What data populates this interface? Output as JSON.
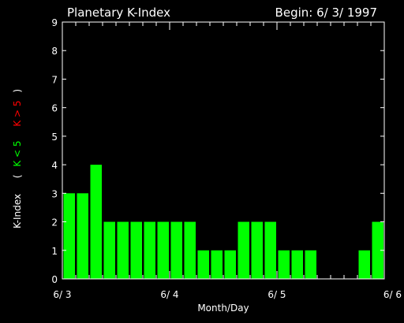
{
  "header": {
    "title": "Planetary K-Index",
    "begin": "Begin: 6/ 3/ 1997"
  },
  "ylabel": {
    "main": "K-Index",
    "open_paren": "(",
    "green_part": "K < 5",
    "red_part": "K > 5",
    "close_paren": ")"
  },
  "chart_data": {
    "type": "bar",
    "title": "Planetary K-Index",
    "xlabel": "Month/Day",
    "ylabel": "K-Index",
    "ylim": [
      0,
      9
    ],
    "yticks": [
      "0",
      "1",
      "2",
      "3",
      "4",
      "5",
      "6",
      "7",
      "8",
      "9"
    ],
    "xticks": [
      "6/ 3",
      "6/ 4",
      "6/ 5",
      "6/ 6"
    ],
    "bars_per_day": 8,
    "days": 3,
    "values": [
      3,
      3,
      4,
      2,
      2,
      2,
      2,
      2,
      2,
      2,
      1,
      1,
      1,
      2,
      2,
      2,
      1,
      1,
      1,
      0,
      0,
      0,
      1,
      2
    ],
    "colors": {
      "low": "#00ff00",
      "high": "#ff0000",
      "axes": "#ffffff",
      "background": "#000000"
    }
  }
}
